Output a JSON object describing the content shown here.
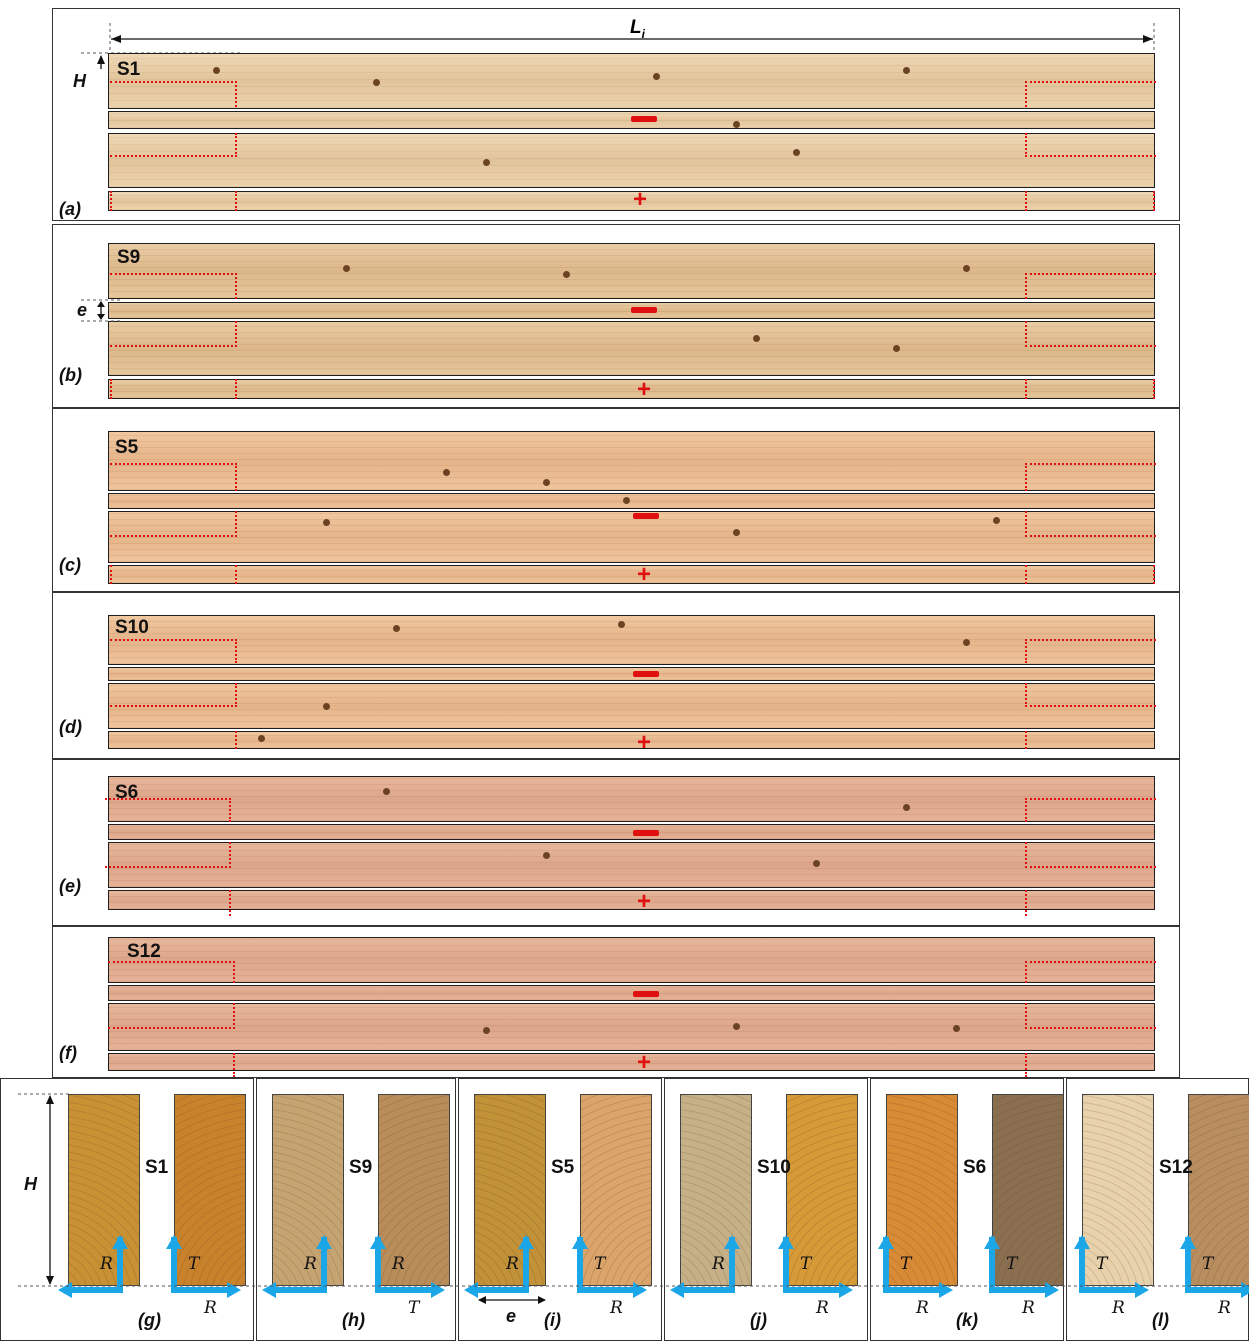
{
  "top": {
    "length_label": "L",
    "length_sub": "i",
    "height_label": "H",
    "thickness_label": "e"
  },
  "panels": [
    {
      "id": "a",
      "specimen": "S1",
      "caption": "(a)"
    },
    {
      "id": "b",
      "specimen": "S9",
      "caption": "(b)"
    },
    {
      "id": "c",
      "specimen": "S5",
      "caption": "(c)"
    },
    {
      "id": "d",
      "specimen": "S10",
      "caption": "(d)"
    },
    {
      "id": "e",
      "specimen": "S6",
      "caption": "(e)"
    },
    {
      "id": "f",
      "specimen": "S12",
      "caption": "(f)"
    }
  ],
  "sign": {
    "minus": "−",
    "plus": "+"
  },
  "sections": [
    {
      "id": "g",
      "specimen": "S1",
      "caption": "(g)",
      "left_axes": [
        "R"
      ],
      "right_axes": [
        "T",
        "R"
      ],
      "colors": [
        "#c89234",
        "#c9822c"
      ]
    },
    {
      "id": "h",
      "specimen": "S9",
      "caption": "(h)",
      "left_axes": [
        "R"
      ],
      "right_axes": [
        "R",
        "T"
      ],
      "colors": [
        "#c6a472",
        "#b88d5a"
      ]
    },
    {
      "id": "i",
      "specimen": "S5",
      "caption": "(i)",
      "left_axes": [
        "R"
      ],
      "right_axes": [
        "T",
        "R"
      ],
      "colors": [
        "#c29238",
        "#dba46a"
      ]
    },
    {
      "id": "j",
      "specimen": "S10",
      "caption": "(j)",
      "left_axes": [
        "R"
      ],
      "right_axes": [
        "T",
        "R"
      ],
      "colors": [
        "#c6b088",
        "#d69a36"
      ]
    },
    {
      "id": "k",
      "specimen": "S6",
      "caption": "(k)",
      "left_axes": [
        "T",
        "R"
      ],
      "right_axes": [
        "T",
        "R"
      ],
      "colors": [
        "#d98a34",
        "#8a7050"
      ]
    },
    {
      "id": "l",
      "specimen": "S12",
      "caption": "(l)",
      "left_axes": [
        "T",
        "R"
      ],
      "right_axes": [
        "T",
        "R"
      ],
      "colors": [
        "#e8d2ac",
        "#b88e60"
      ]
    }
  ],
  "section_labels": {
    "height": "H",
    "width": "e"
  }
}
